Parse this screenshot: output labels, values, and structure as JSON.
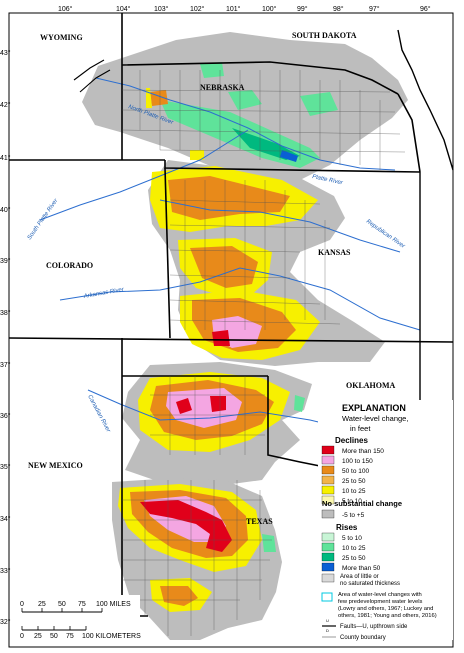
{
  "colors": {
    "decline_gt150": "#e0001a",
    "decline_100_150": "#f4a6e2",
    "decline_50_100": "#e88a1a",
    "decline_25_50": "#f2b44a",
    "decline_10_25": "#f7f000",
    "decline_5_10": "#fbf8b0",
    "no_change": "#bdbdbd",
    "rise_5_10": "#c8f5d6",
    "rise_10_25": "#5fe39a",
    "rise_25_50": "#00b97f",
    "rise_gt50": "#0a5fd4",
    "river": "#2d6fd0",
    "boundary": "#000000"
  },
  "longitude_labels": [
    "106°",
    "104°",
    "103°",
    "102°",
    "101°",
    "100°",
    "99°",
    "98°",
    "97°",
    "96°"
  ],
  "latitude_labels": [
    "43°",
    "42°",
    "41°",
    "40°",
    "39°",
    "38°",
    "37°",
    "36°",
    "35°",
    "34°",
    "33°",
    "32°"
  ],
  "states": {
    "wyoming": "WYOMING",
    "south_dakota": "SOUTH DAKOTA",
    "nebraska": "NEBRASKA",
    "colorado": "COLORADO",
    "kansas": "KANSAS",
    "oklahoma": "OKLAHOMA",
    "new_mexico": "NEW MEXICO",
    "texas": "TEXAS"
  },
  "rivers": {
    "north_platte": "North Platte River",
    "platte": "Platte River",
    "south_platte": "South Platte River",
    "republican": "Republican River",
    "arkansas": "Arkansas River",
    "canadian": "Canadian River"
  },
  "legend": {
    "title": "EXPLANATION",
    "subtitle_1": "Water-level change,",
    "subtitle_2": "in feet",
    "declines_heading": "Declines",
    "declines": [
      {
        "label": "More than 150",
        "color": "#e0001a"
      },
      {
        "label": "100 to 150",
        "color": "#f4a6e2"
      },
      {
        "label": "50 to 100",
        "color": "#e88a1a"
      },
      {
        "label": "25 to 50",
        "color": "#f2b44a"
      },
      {
        "label": "10 to 25",
        "color": "#f7f000"
      },
      {
        "label": "5 to 10",
        "color": "#fbf8b0"
      }
    ],
    "no_change_heading": "No substantial change",
    "no_change_label": "-5 to +5",
    "rises_heading": "Rises",
    "rises": [
      {
        "label": "5 to 10",
        "color": "#c8f5d6"
      },
      {
        "label": "10 to 25",
        "color": "#5fe39a"
      },
      {
        "label": "25 to 50",
        "color": "#00b97f"
      },
      {
        "label": "More than 50",
        "color": "#0a5fd4"
      }
    ],
    "little_thickness_1": "Area of little or",
    "little_thickness_2": "no saturated thickness",
    "few_levels_1": "Area of water-level changes with",
    "few_levels_2": "few predevelopment water levels",
    "few_levels_3": "(Lowry and others, 1967; Luckey and",
    "few_levels_4": "others, 1981; Young and others, 2016)",
    "fault_label": "Faults—U, upthrown side",
    "fault_u": "U",
    "fault_d": "D",
    "county_label": "County boundary"
  },
  "scale": {
    "miles_ticks": [
      "0",
      "25",
      "50",
      "75",
      "100 MILES"
    ],
    "km_ticks": [
      "0",
      "25",
      "50",
      "75",
      "100 KILOMETERS"
    ]
  }
}
